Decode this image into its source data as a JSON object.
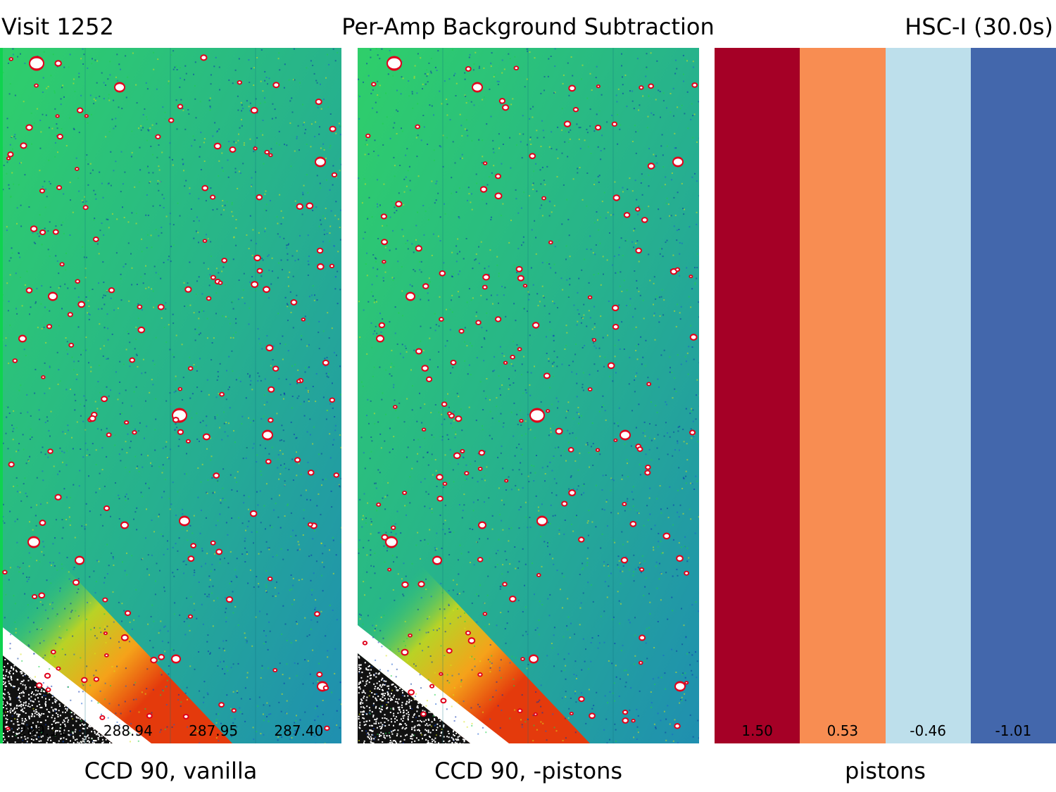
{
  "header": {
    "left": "Visit 1252",
    "center": "Per-Amp Background Subtraction",
    "right": "HSC-I (30.0s)"
  },
  "panels": [
    {
      "caption": "CCD 90, vanilla",
      "amp_labels": [
        "289.11",
        "288.94",
        "287.95",
        "287.40"
      ]
    },
    {
      "caption": "CCD 90, -pistons",
      "amp_labels": []
    },
    {
      "caption": "pistons",
      "amp_labels": [
        "1.50",
        "0.53",
        "-0.46",
        "-1.01"
      ],
      "bar_colors": [
        "#a50026",
        "#f88d52",
        "#bddfeb",
        "#4367ac"
      ]
    }
  ],
  "colors": {
    "sky_green": "#2fcf6a",
    "sky_blue": "#1f8fb0",
    "gradient_orange": "#f5a21a",
    "gradient_red": "#e43a0c",
    "star_white": "#ffffff",
    "star_red": "#e0001b"
  }
}
